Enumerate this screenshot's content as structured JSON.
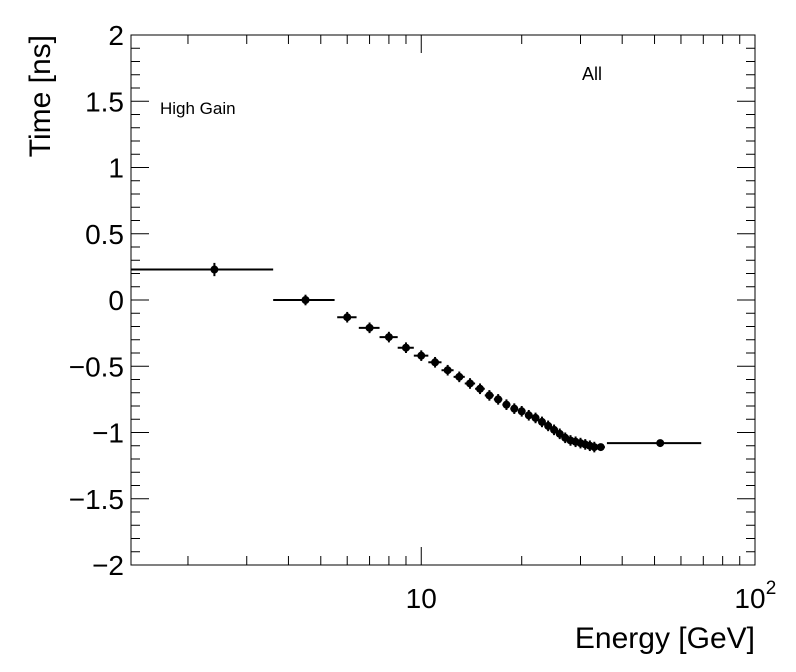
{
  "chart_data": {
    "type": "scatter",
    "title": "",
    "xlabel": "Energy [GeV]",
    "ylabel": "Time [ns]",
    "xscale": "log",
    "xlim": [
      1.35,
      100
    ],
    "ylim": [
      -2,
      2
    ],
    "grid": false,
    "legend": "none",
    "xticks": [
      {
        "value": 10,
        "label": "10"
      },
      {
        "value": 100,
        "label": "10",
        "exp": "2"
      }
    ],
    "yticks": [
      {
        "value": 2,
        "label": "2"
      },
      {
        "value": 1.5,
        "label": "1.5"
      },
      {
        "value": 1,
        "label": "1"
      },
      {
        "value": 0.5,
        "label": "0.5"
      },
      {
        "value": 0,
        "label": "0"
      },
      {
        "value": -0.5,
        "label": "−0.5"
      },
      {
        "value": -1,
        "label": "−1"
      },
      {
        "value": -1.5,
        "label": "−1.5"
      },
      {
        "value": -2,
        "label": "−2"
      }
    ],
    "annotations": [
      {
        "text": "High Gain",
        "position": "top-left"
      },
      {
        "text": "All",
        "position": "top-right"
      }
    ],
    "series": [
      {
        "color": "#000000",
        "points": [
          {
            "x": 2.4,
            "xlo": 1.35,
            "xhi": 3.6,
            "y": 0.23,
            "yerr": 0.05
          },
          {
            "x": 4.5,
            "xlo": 3.6,
            "xhi": 5.5,
            "y": 0.0,
            "yerr": 0.04
          },
          {
            "x": 6.0,
            "xlo": 5.6,
            "xhi": 6.4,
            "y": -0.13,
            "yerr": 0.04
          },
          {
            "x": 7.0,
            "xlo": 6.5,
            "xhi": 7.5,
            "y": -0.21,
            "yerr": 0.04
          },
          {
            "x": 8.0,
            "xlo": 7.5,
            "xhi": 8.5,
            "y": -0.28,
            "yerr": 0.04
          },
          {
            "x": 9.0,
            "xlo": 8.5,
            "xhi": 9.5,
            "y": -0.36,
            "yerr": 0.04
          },
          {
            "x": 10.0,
            "xlo": 9.5,
            "xhi": 10.5,
            "y": -0.42,
            "yerr": 0.04
          },
          {
            "x": 11.0,
            "xlo": 10.5,
            "xhi": 11.5,
            "y": -0.47,
            "yerr": 0.04
          },
          {
            "x": 12.0,
            "xlo": 11.5,
            "xhi": 12.5,
            "y": -0.53,
            "yerr": 0.04
          },
          {
            "x": 13.0,
            "xlo": 12.5,
            "xhi": 13.5,
            "y": -0.58,
            "yerr": 0.04
          },
          {
            "x": 14.0,
            "xlo": 13.5,
            "xhi": 14.5,
            "y": -0.63,
            "yerr": 0.04
          },
          {
            "x": 15.0,
            "xlo": 14.5,
            "xhi": 15.5,
            "y": -0.67,
            "yerr": 0.04
          },
          {
            "x": 16.0,
            "xlo": 15.5,
            "xhi": 16.5,
            "y": -0.72,
            "yerr": 0.04
          },
          {
            "x": 17.0,
            "xlo": 16.5,
            "xhi": 17.5,
            "y": -0.75,
            "yerr": 0.04
          },
          {
            "x": 18.0,
            "xlo": 17.5,
            "xhi": 18.5,
            "y": -0.79,
            "yerr": 0.04
          },
          {
            "x": 19.0,
            "xlo": 18.5,
            "xhi": 19.5,
            "y": -0.82,
            "yerr": 0.04
          },
          {
            "x": 20.0,
            "xlo": 19.5,
            "xhi": 20.5,
            "y": -0.84,
            "yerr": 0.04
          },
          {
            "x": 21.0,
            "xlo": 20.5,
            "xhi": 21.5,
            "y": -0.87,
            "yerr": 0.04
          },
          {
            "x": 22.0,
            "xlo": 21.5,
            "xhi": 22.5,
            "y": -0.89,
            "yerr": 0.04
          },
          {
            "x": 23.0,
            "xlo": 22.5,
            "xhi": 23.5,
            "y": -0.92,
            "yerr": 0.04
          },
          {
            "x": 24.0,
            "xlo": 23.5,
            "xhi": 24.5,
            "y": -0.95,
            "yerr": 0.04
          },
          {
            "x": 25.0,
            "xlo": 24.5,
            "xhi": 25.5,
            "y": -0.98,
            "yerr": 0.04
          },
          {
            "x": 26.0,
            "xlo": 25.5,
            "xhi": 26.5,
            "y": -1.01,
            "yerr": 0.04
          },
          {
            "x": 27.0,
            "xlo": 26.5,
            "xhi": 27.5,
            "y": -1.04,
            "yerr": 0.04
          },
          {
            "x": 28.0,
            "xlo": 27.5,
            "xhi": 28.5,
            "y": -1.06,
            "yerr": 0.04
          },
          {
            "x": 29.0,
            "xlo": 28.5,
            "xhi": 29.5,
            "y": -1.07,
            "yerr": 0.04
          },
          {
            "x": 30.0,
            "xlo": 29.5,
            "xhi": 30.5,
            "y": -1.08,
            "yerr": 0.04
          },
          {
            "x": 31.0,
            "xlo": 30.5,
            "xhi": 31.5,
            "y": -1.09,
            "yerr": 0.04
          },
          {
            "x": 32.0,
            "xlo": 31.5,
            "xhi": 32.5,
            "y": -1.1,
            "yerr": 0.04
          },
          {
            "x": 33.0,
            "xlo": 32.5,
            "xhi": 33.5,
            "y": -1.11,
            "yerr": 0.04
          },
          {
            "x": 34.5,
            "xlo": 33.5,
            "xhi": 35.5,
            "y": -1.11,
            "yerr": 0.02
          },
          {
            "x": 52.0,
            "xlo": 36.0,
            "xhi": 69.0,
            "y": -1.08,
            "yerr": 0.01
          }
        ]
      }
    ]
  }
}
